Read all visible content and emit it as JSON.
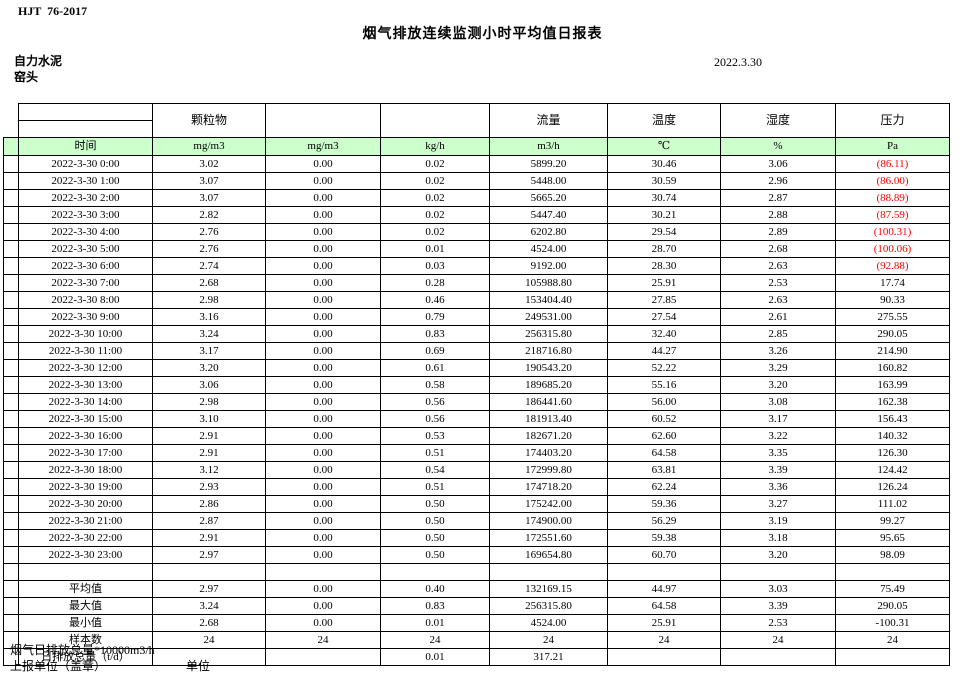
{
  "meta": {
    "standard_code": "HJT  76-2017",
    "title": "烟气排放连续监测小时平均值日报表",
    "company": "自力水泥",
    "station": "窑头",
    "date": "2022.3.30"
  },
  "colors": {
    "unit_row_green": "#ccffcc",
    "alert_red": "#ff0000",
    "grid_line": "#000000"
  },
  "table": {
    "group_headers": {
      "particulate": "颗粒物",
      "flow": "流量",
      "temperature": "温度",
      "humidity": "湿度",
      "pressure": "压力"
    },
    "unit_row": {
      "time_label": "时间",
      "units": [
        "mg/m3",
        "mg/m3",
        "kg/h",
        "m3/h",
        "℃",
        "%",
        "Pa"
      ]
    },
    "rows": [
      {
        "time": "2022-3-30 0:00",
        "values": [
          "3.02",
          "0.00",
          "0.02",
          "5899.20",
          "30.46",
          "3.06",
          "(86.11)"
        ],
        "pressure_red": true
      },
      {
        "time": "2022-3-30 1:00",
        "values": [
          "3.07",
          "0.00",
          "0.02",
          "5448.00",
          "30.59",
          "2.96",
          "(86.00)"
        ],
        "pressure_red": true
      },
      {
        "time": "2022-3-30 2:00",
        "values": [
          "3.07",
          "0.00",
          "0.02",
          "5665.20",
          "30.74",
          "2.87",
          "(88.89)"
        ],
        "pressure_red": true
      },
      {
        "time": "2022-3-30 3:00",
        "values": [
          "2.82",
          "0.00",
          "0.02",
          "5447.40",
          "30.21",
          "2.88",
          "(87.59)"
        ],
        "pressure_red": true
      },
      {
        "time": "2022-3-30 4:00",
        "values": [
          "2.76",
          "0.00",
          "0.02",
          "6202.80",
          "29.54",
          "2.89",
          "(100.31)"
        ],
        "pressure_red": true
      },
      {
        "time": "2022-3-30 5:00",
        "values": [
          "2.76",
          "0.00",
          "0.01",
          "4524.00",
          "28.70",
          "2.68",
          "(100.06)"
        ],
        "pressure_red": true
      },
      {
        "time": "2022-3-30 6:00",
        "values": [
          "2.74",
          "0.00",
          "0.03",
          "9192.00",
          "28.30",
          "2.63",
          "(92.88)"
        ],
        "pressure_red": true
      },
      {
        "time": "2022-3-30 7:00",
        "values": [
          "2.68",
          "0.00",
          "0.28",
          "105988.80",
          "25.91",
          "2.53",
          "17.74"
        ],
        "pressure_red": false
      },
      {
        "time": "2022-3-30 8:00",
        "values": [
          "2.98",
          "0.00",
          "0.46",
          "153404.40",
          "27.85",
          "2.63",
          "90.33"
        ],
        "pressure_red": false
      },
      {
        "time": "2022-3-30 9:00",
        "values": [
          "3.16",
          "0.00",
          "0.79",
          "249531.00",
          "27.54",
          "2.61",
          "275.55"
        ],
        "pressure_red": false
      },
      {
        "time": "2022-3-30 10:00",
        "values": [
          "3.24",
          "0.00",
          "0.83",
          "256315.80",
          "32.40",
          "2.85",
          "290.05"
        ],
        "pressure_red": false
      },
      {
        "time": "2022-3-30 11:00",
        "values": [
          "3.17",
          "0.00",
          "0.69",
          "218716.80",
          "44.27",
          "3.26",
          "214.90"
        ],
        "pressure_red": false
      },
      {
        "time": "2022-3-30 12:00",
        "values": [
          "3.20",
          "0.00",
          "0.61",
          "190543.20",
          "52.22",
          "3.29",
          "160.82"
        ],
        "pressure_red": false
      },
      {
        "time": "2022-3-30 13:00",
        "values": [
          "3.06",
          "0.00",
          "0.58",
          "189685.20",
          "55.16",
          "3.20",
          "163.99"
        ],
        "pressure_red": false
      },
      {
        "time": "2022-3-30 14:00",
        "values": [
          "2.98",
          "0.00",
          "0.56",
          "186441.60",
          "56.00",
          "3.08",
          "162.38"
        ],
        "pressure_red": false
      },
      {
        "time": "2022-3-30 15:00",
        "values": [
          "3.10",
          "0.00",
          "0.56",
          "181913.40",
          "60.52",
          "3.17",
          "156.43"
        ],
        "pressure_red": false
      },
      {
        "time": "2022-3-30 16:00",
        "values": [
          "2.91",
          "0.00",
          "0.53",
          "182671.20",
          "62.60",
          "3.22",
          "140.32"
        ],
        "pressure_red": false
      },
      {
        "time": "2022-3-30 17:00",
        "values": [
          "2.91",
          "0.00",
          "0.51",
          "174403.20",
          "64.58",
          "3.35",
          "126.30"
        ],
        "pressure_red": false
      },
      {
        "time": "2022-3-30 18:00",
        "values": [
          "3.12",
          "0.00",
          "0.54",
          "172999.80",
          "63.81",
          "3.39",
          "124.42"
        ],
        "pressure_red": false
      },
      {
        "time": "2022-3-30 19:00",
        "values": [
          "2.93",
          "0.00",
          "0.51",
          "174718.20",
          "62.24",
          "3.36",
          "126.24"
        ],
        "pressure_red": false
      },
      {
        "time": "2022-3-30 20:00",
        "values": [
          "2.86",
          "0.00",
          "0.50",
          "175242.00",
          "59.36",
          "3.27",
          "111.02"
        ],
        "pressure_red": false
      },
      {
        "time": "2022-3-30 21:00",
        "values": [
          "2.87",
          "0.00",
          "0.50",
          "174900.00",
          "56.29",
          "3.19",
          "99.27"
        ],
        "pressure_red": false
      },
      {
        "time": "2022-3-30 22:00",
        "values": [
          "2.91",
          "0.00",
          "0.50",
          "172551.60",
          "59.38",
          "3.18",
          "95.65"
        ],
        "pressure_red": false
      },
      {
        "time": "2022-3-30 23:00",
        "values": [
          "2.97",
          "0.00",
          "0.50",
          "169654.80",
          "60.70",
          "3.20",
          "98.09"
        ],
        "pressure_red": false
      }
    ],
    "summary_rows": [
      {
        "label": "平均值",
        "values": [
          "2.97",
          "0.00",
          "0.40",
          "132169.15",
          "44.97",
          "3.03",
          "75.49"
        ]
      },
      {
        "label": "最大值",
        "values": [
          "3.24",
          "0.00",
          "0.83",
          "256315.80",
          "64.58",
          "3.39",
          "290.05"
        ]
      },
      {
        "label": "最小值",
        "values": [
          "2.68",
          "0.00",
          "0.01",
          "4524.00",
          "25.91",
          "2.53",
          "-100.31"
        ]
      },
      {
        "label": "样本数",
        "values": [
          "24",
          "24",
          "24",
          "24",
          "24",
          "24",
          "24"
        ]
      },
      {
        "label": "日排放总量（t/d）",
        "values": [
          "",
          "",
          "0.01",
          "317.21",
          "",
          "",
          ""
        ]
      }
    ]
  },
  "footer": {
    "note": "烟气日排放总量*10000m3/h",
    "report_unit_label": "上报单位（盖章）",
    "unit_label": "单位"
  }
}
